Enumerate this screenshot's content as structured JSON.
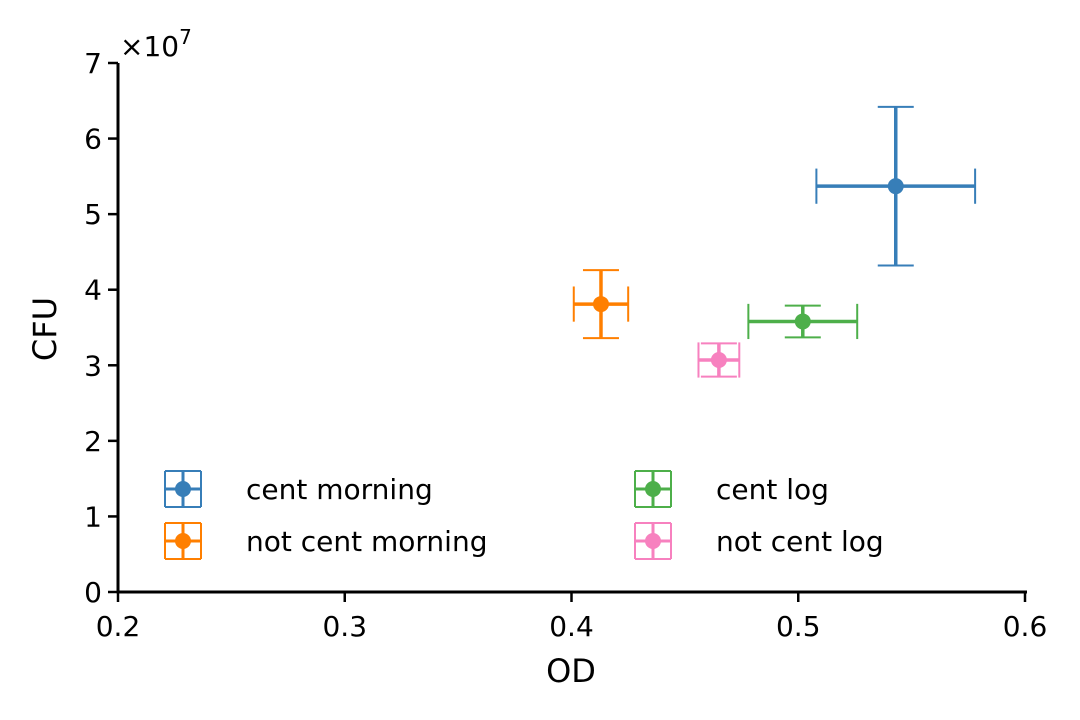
{
  "chart_data": {
    "type": "scatter",
    "title": "",
    "xlabel": "OD",
    "ylabel": "CFU",
    "y_offset_label": "×10",
    "y_offset_exponent": "7",
    "xlim": [
      0.2,
      0.6
    ],
    "ylim": [
      0,
      7
    ],
    "xticks": [
      "0.2",
      "0.3",
      "0.4",
      "0.5",
      "0.6"
    ],
    "yticks": [
      "0",
      "1",
      "2",
      "3",
      "4",
      "5",
      "6",
      "7"
    ],
    "grid": false,
    "legend_position": "lower-left",
    "series": [
      {
        "name": "cent morning",
        "color": "#377eb8",
        "x": 0.543,
        "y": 5.37,
        "xerr": 0.035,
        "yerr": 1.05
      },
      {
        "name": "not cent morning",
        "color": "#ff7f00",
        "x": 0.413,
        "y": 3.81,
        "xerr": 0.012,
        "yerr": 0.45
      },
      {
        "name": "cent log",
        "color": "#4daf4a",
        "x": 0.502,
        "y": 3.58,
        "xerr": 0.024,
        "yerr": 0.21
      },
      {
        "name": "not cent log",
        "color": "#f781bf",
        "x": 0.465,
        "y": 3.07,
        "xerr": 0.009,
        "yerr": 0.22
      }
    ]
  }
}
